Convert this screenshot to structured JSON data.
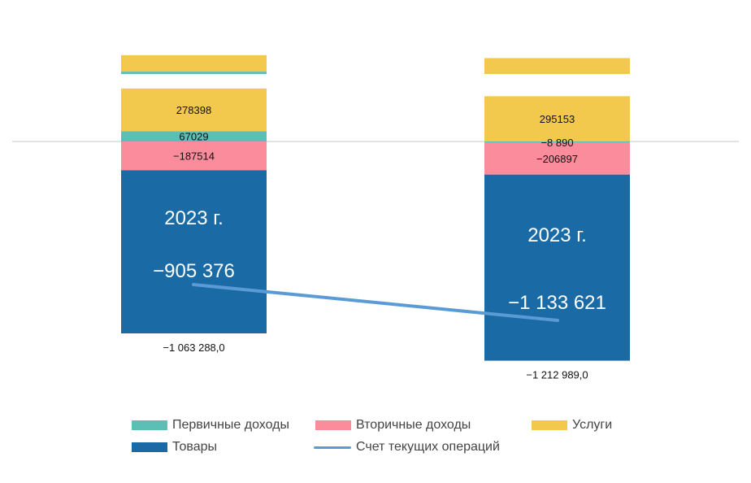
{
  "chart_data": {
    "type": "bar",
    "stacked": true,
    "categories": [
      "",
      ""
    ],
    "series": [
      {
        "name": "Первичные доходы",
        "color": "#5bbfb5",
        "values": [
          67029,
          -8890
        ],
        "labels": [
          "67029",
          "−8 890"
        ]
      },
      {
        "name": "Вторичные доходы",
        "color": "#fa8c9c",
        "values": [
          -187514,
          -206897
        ],
        "labels": [
          "−187514",
          "−206897"
        ]
      },
      {
        "name": "Услуги",
        "color": "#f2c94c",
        "values": [
          278398,
          295153
        ],
        "labels": [
          "278398",
          "295153"
        ]
      },
      {
        "name": "Товары",
        "color": "#1a6aa6",
        "values": [
          -1063288.0,
          -1212989.0
        ],
        "labels": [
          "−1 063 288,0",
          "−1 212 989,0"
        ]
      }
    ],
    "line": {
      "name": "Счет текущих операций",
      "color": "#5b9bd5",
      "values": [
        -905376,
        -1133621
      ],
      "labels": [
        "−905 376",
        "−1 133 621"
      ]
    },
    "year_labels": [
      "2023 г.",
      "2023 г."
    ],
    "top_fragment": {
      "bar1": [
        {
          "series": "Первичные доходы",
          "value": 17000
        },
        {
          "series": "Услуги",
          "value": 118000
        }
      ],
      "bar2": [
        {
          "series": "Услуги",
          "value": 114000
        }
      ]
    },
    "zero_line": true,
    "legend_position": "bottom"
  }
}
